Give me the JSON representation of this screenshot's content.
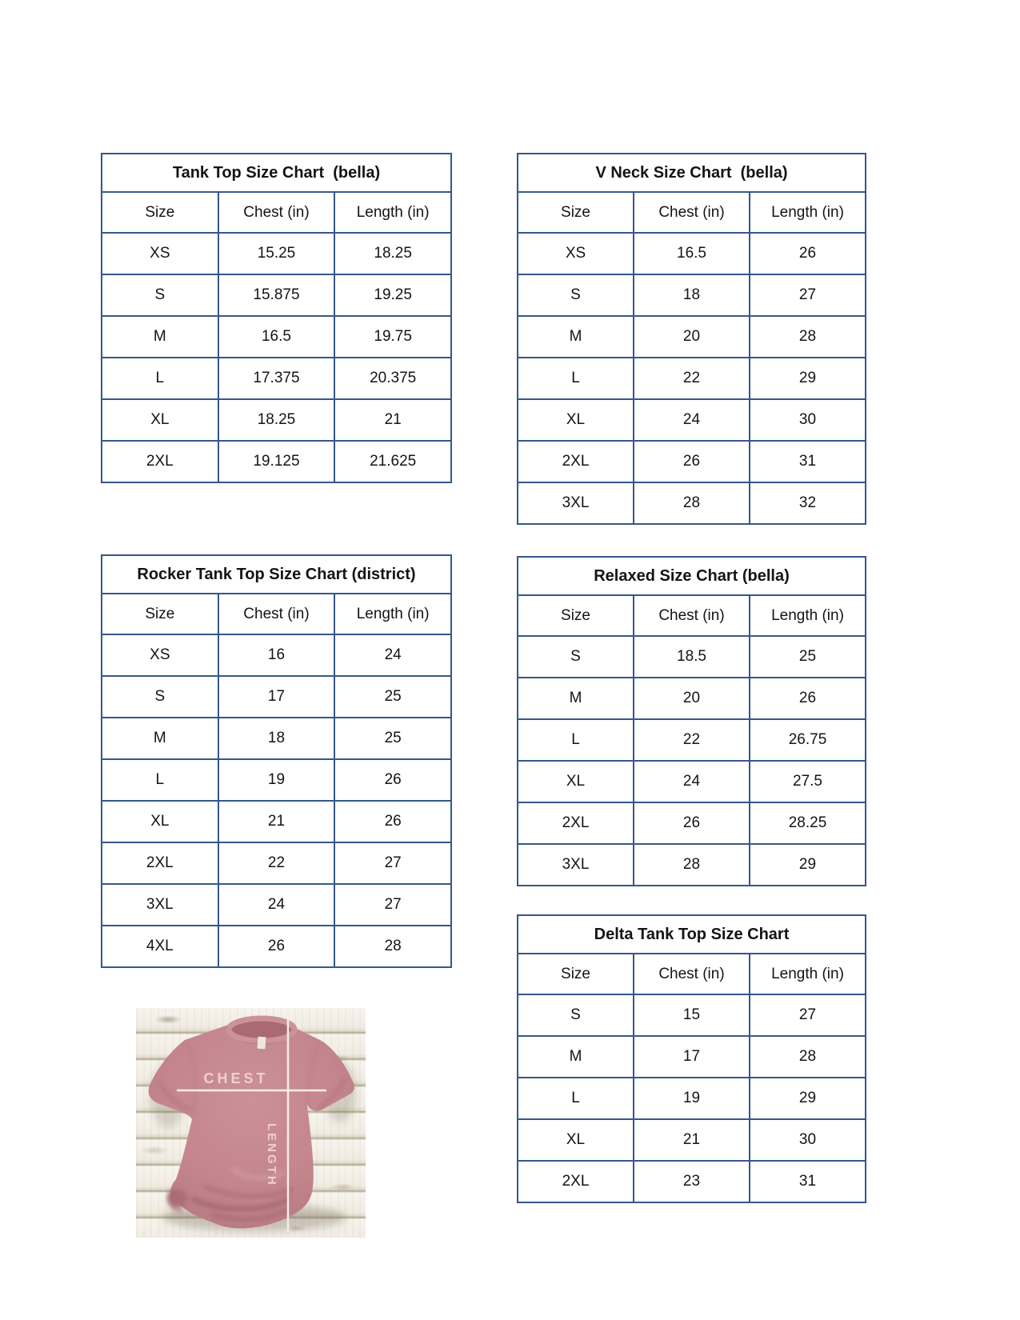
{
  "styles": {
    "table_border_color": "#35578A",
    "table_text_color": "#141414",
    "page_background": "#FFFFFF",
    "shirt_main_color": "#C4868C",
    "shirt_shadow_color": "#A5656E",
    "measure_line_color": "#F6EEEC",
    "measure_label_color": "#ECD0D3",
    "wood_plank_color": "#F4F1EA"
  },
  "tables": [
    {
      "id": "tank-top",
      "title": "Tank Top Size Chart  (bella)",
      "headers": [
        "Size",
        "Chest (in)",
        "Length (in)"
      ],
      "rows": [
        [
          "XS",
          "15.25",
          "18.25"
        ],
        [
          "S",
          "15.875",
          "19.25"
        ],
        [
          "M",
          "16.5",
          "19.75"
        ],
        [
          "L",
          "17.375",
          "20.375"
        ],
        [
          "XL",
          "18.25",
          "21"
        ],
        [
          "2XL",
          "19.125",
          "21.625"
        ]
      ]
    },
    {
      "id": "v-neck",
      "title": "V Neck Size Chart  (bella)",
      "headers": [
        "Size",
        "Chest (in)",
        "Length (in)"
      ],
      "rows": [
        [
          "XS",
          "16.5",
          "26"
        ],
        [
          "S",
          "18",
          "27"
        ],
        [
          "M",
          "20",
          "28"
        ],
        [
          "L",
          "22",
          "29"
        ],
        [
          "XL",
          "24",
          "30"
        ],
        [
          "2XL",
          "26",
          "31"
        ],
        [
          "3XL",
          "28",
          "32"
        ]
      ]
    },
    {
      "id": "rocker-tank-top",
      "title": "Rocker Tank Top Size Chart (district)",
      "headers": [
        "Size",
        "Chest (in)",
        "Length (in)"
      ],
      "rows": [
        [
          "XS",
          "16",
          "24"
        ],
        [
          "S",
          "17",
          "25"
        ],
        [
          "M",
          "18",
          "25"
        ],
        [
          "L",
          "19",
          "26"
        ],
        [
          "XL",
          "21",
          "26"
        ],
        [
          "2XL",
          "22",
          "27"
        ],
        [
          "3XL",
          "24",
          "27"
        ],
        [
          "4XL",
          "26",
          "28"
        ]
      ]
    },
    {
      "id": "relaxed",
      "title": "Relaxed Size Chart (bella)",
      "headers": [
        "Size",
        "Chest (in)",
        "Length (in)"
      ],
      "rows": [
        [
          "S",
          "18.5",
          "25"
        ],
        [
          "M",
          "20",
          "26"
        ],
        [
          "L",
          "22",
          "26.75"
        ],
        [
          "XL",
          "24",
          "27.5"
        ],
        [
          "2XL",
          "26",
          "28.25"
        ],
        [
          "3XL",
          "28",
          "29"
        ]
      ]
    },
    {
      "id": "delta-tank-top",
      "title": "Delta Tank Top Size Chart",
      "headers": [
        "Size",
        "Chest (in)",
        "Length (in)"
      ],
      "rows": [
        [
          "S",
          "15",
          "27"
        ],
        [
          "M",
          "17",
          "28"
        ],
        [
          "L",
          "19",
          "29"
        ],
        [
          "XL",
          "21",
          "30"
        ],
        [
          "2XL",
          "23",
          "31"
        ]
      ]
    }
  ],
  "shirt_image": {
    "chest_label": "CHEST",
    "length_label": "LENGTH"
  }
}
